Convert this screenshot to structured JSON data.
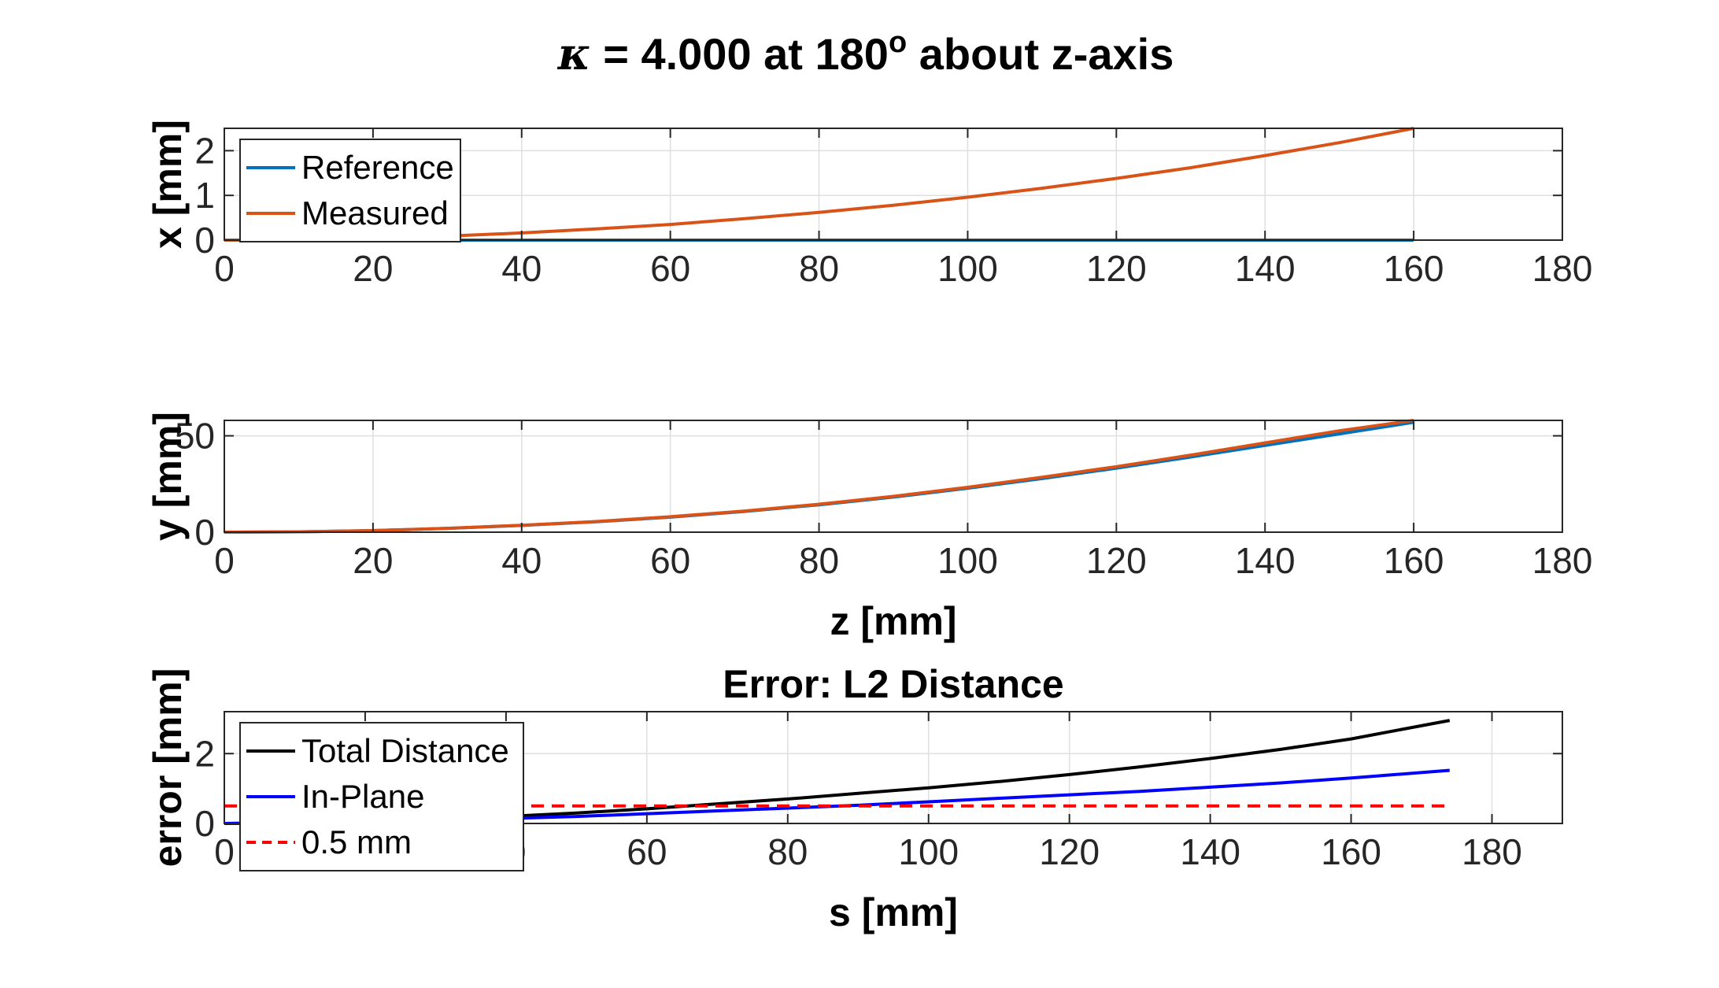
{
  "figure": {
    "title_kappa": "κ",
    "title_main": " = 4.000 at 180",
    "title_sup": "o",
    "title_tail": " about z-axis"
  },
  "colors": {
    "reference": "#0072BD",
    "measured": "#D95319",
    "total": "#000000",
    "inplane": "#0000FF",
    "threshold": "#FF0000",
    "grid": "#DFDFDF",
    "axis": "#262626"
  },
  "chart_data": [
    {
      "type": "line",
      "id": "x-plot",
      "title": "",
      "xlabel": "",
      "ylabel": "x [mm]",
      "xlim": [
        0,
        180
      ],
      "ylim": [
        0,
        2.5
      ],
      "xticks": [
        0,
        20,
        40,
        60,
        80,
        100,
        120,
        140,
        160,
        180
      ],
      "yticks": [
        0,
        1,
        2
      ],
      "grid": true,
      "legend": "top-left",
      "series": [
        {
          "name": "Reference",
          "color": "#0072BD",
          "x": [
            0,
            20,
            40,
            60,
            80,
            100,
            120,
            140,
            160
          ],
          "y": [
            0,
            0,
            0,
            0,
            0,
            0,
            0,
            0,
            0
          ]
        },
        {
          "name": "Measured",
          "color": "#D95319",
          "x": [
            0,
            10,
            20,
            30,
            40,
            50,
            60,
            70,
            80,
            90,
            100,
            110,
            120,
            130,
            140,
            150,
            160
          ],
          "y": [
            0,
            0.01,
            0.04,
            0.09,
            0.16,
            0.25,
            0.35,
            0.48,
            0.62,
            0.78,
            0.96,
            1.16,
            1.38,
            1.62,
            1.89,
            2.18,
            2.5
          ]
        }
      ]
    },
    {
      "type": "line",
      "id": "y-plot",
      "title": "",
      "xlabel": "z [mm]",
      "ylabel": "y [mm]",
      "xlim": [
        0,
        180
      ],
      "ylim": [
        0,
        58
      ],
      "xticks": [
        0,
        20,
        40,
        60,
        80,
        100,
        120,
        140,
        160,
        180
      ],
      "yticks": [
        0,
        50
      ],
      "grid": true,
      "legend": "none",
      "series": [
        {
          "name": "",
          "color": "#0072BD",
          "x": [
            0,
            10,
            20,
            30,
            40,
            50,
            60,
            70,
            80,
            90,
            100,
            110,
            120,
            130,
            140,
            150,
            160
          ],
          "y": [
            0,
            0.2,
            0.8,
            2.0,
            3.5,
            5.4,
            7.8,
            10.8,
            14.2,
            18.2,
            22.8,
            27.8,
            33.2,
            39.0,
            45.0,
            51.0,
            57.0
          ]
        },
        {
          "name": "",
          "color": "#D95319",
          "x": [
            0,
            10,
            20,
            30,
            40,
            50,
            60,
            70,
            80,
            90,
            100,
            110,
            120,
            130,
            140,
            150,
            160
          ],
          "y": [
            0,
            0.2,
            0.8,
            2.0,
            3.6,
            5.5,
            8.0,
            11.0,
            14.5,
            18.6,
            23.3,
            28.5,
            34.0,
            40.0,
            46.3,
            52.6,
            58.0
          ]
        }
      ]
    },
    {
      "type": "line",
      "id": "error-plot",
      "title": "Error: L2 Distance",
      "xlabel": "s [mm]",
      "ylabel": "error [mm]",
      "xlim": [
        0,
        190
      ],
      "ylim": [
        0,
        3.2
      ],
      "xticks": [
        0,
        20,
        40,
        60,
        80,
        100,
        120,
        140,
        160,
        180
      ],
      "yticks": [
        0,
        2
      ],
      "grid": true,
      "legend": "top-left",
      "series": [
        {
          "name": "Total Distance",
          "color": "#000000",
          "dash": false,
          "x": [
            0,
            10,
            20,
            30,
            40,
            50,
            60,
            70,
            80,
            90,
            100,
            110,
            120,
            130,
            140,
            150,
            160,
            174
          ],
          "y": [
            0,
            0.02,
            0.05,
            0.12,
            0.2,
            0.3,
            0.42,
            0.56,
            0.7,
            0.86,
            1.02,
            1.2,
            1.4,
            1.62,
            1.86,
            2.12,
            2.42,
            2.95
          ]
        },
        {
          "name": "In-Plane",
          "color": "#0000FF",
          "dash": false,
          "x": [
            0,
            10,
            20,
            30,
            40,
            50,
            60,
            70,
            80,
            90,
            100,
            110,
            120,
            130,
            140,
            150,
            160,
            174
          ],
          "y": [
            0,
            0.02,
            0.05,
            0.08,
            0.14,
            0.2,
            0.28,
            0.36,
            0.44,
            0.52,
            0.62,
            0.72,
            0.82,
            0.92,
            1.04,
            1.16,
            1.3,
            1.52
          ]
        },
        {
          "name": "0.5 mm",
          "color": "#FF0000",
          "dash": true,
          "x": [
            0,
            174
          ],
          "y": [
            0.5,
            0.5
          ]
        }
      ]
    }
  ]
}
